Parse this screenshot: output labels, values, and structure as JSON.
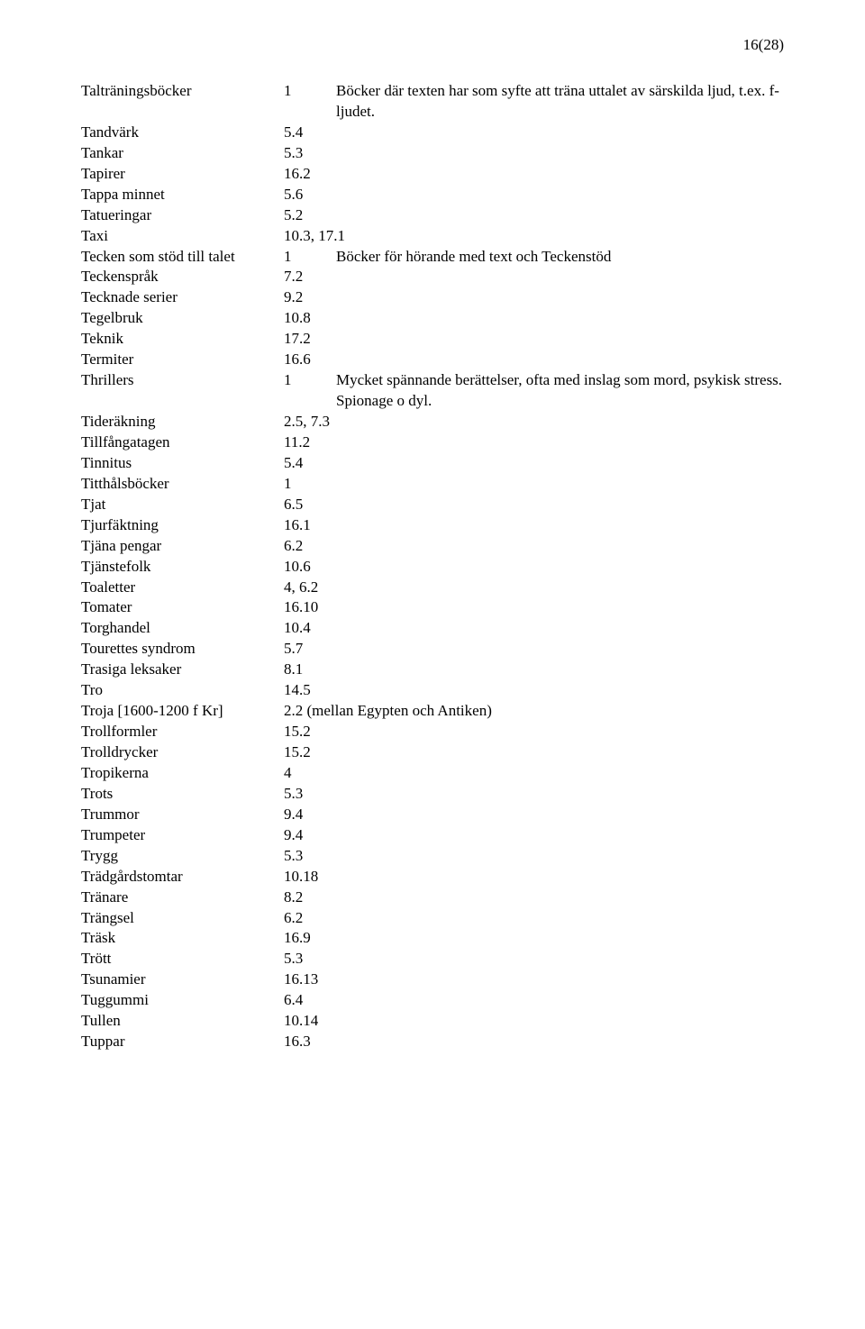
{
  "pageNumber": "16(28)",
  "entries": [
    {
      "term": "Talträningsböcker",
      "code": "1",
      "note": "Böcker där texten har som syfte att träna uttalet av särskilda ljud, t.ex. f-ljudet."
    },
    {
      "term": "Tandvärk",
      "code": "5.4",
      "note": ""
    },
    {
      "term": "Tankar",
      "code": "5.3",
      "note": ""
    },
    {
      "term": "Tapirer",
      "code": "16.2",
      "note": ""
    },
    {
      "term": "Tappa minnet",
      "code": "5.6",
      "note": ""
    },
    {
      "term": "Tatueringar",
      "code": "5.2",
      "note": ""
    },
    {
      "term": "Taxi",
      "code": "10.3, 17.1",
      "note": ""
    },
    {
      "term": "Tecken som stöd till talet",
      "code": "1",
      "note": "Böcker för hörande med text och Teckenstöd"
    },
    {
      "term": "Teckenspråk",
      "code": "7.2",
      "note": ""
    },
    {
      "term": "Tecknade serier",
      "code": "9.2",
      "note": ""
    },
    {
      "term": "Tegelbruk",
      "code": "10.8",
      "note": ""
    },
    {
      "term": "Teknik",
      "code": "17.2",
      "note": ""
    },
    {
      "term": "Termiter",
      "code": "16.6",
      "note": ""
    },
    {
      "term": "Thrillers",
      "code": "1",
      "note": "Mycket spännande berättelser, ofta med inslag som mord, psykisk stress. Spionage o dyl."
    },
    {
      "term": "Tideräkning",
      "code": "2.5, 7.3",
      "note": ""
    },
    {
      "term": "Tillfångatagen",
      "code": "11.2",
      "note": ""
    },
    {
      "term": "Tinnitus",
      "code": "5.4",
      "note": ""
    },
    {
      "term": "Titthålsböcker",
      "code": "1",
      "note": ""
    },
    {
      "term": "Tjat",
      "code": "6.5",
      "note": ""
    },
    {
      "term": "Tjurfäktning",
      "code": "16.1",
      "note": ""
    },
    {
      "term": "Tjäna pengar",
      "code": "6.2",
      "note": ""
    },
    {
      "term": "Tjänstefolk",
      "code": "10.6",
      "note": ""
    },
    {
      "term": "Toaletter",
      "code": "4, 6.2",
      "note": ""
    },
    {
      "term": "Tomater",
      "code": "16.10",
      "note": ""
    },
    {
      "term": "Torghandel",
      "code": "10.4",
      "note": ""
    },
    {
      "term": "Tourettes syndrom",
      "code": "5.7",
      "note": ""
    },
    {
      "term": "Trasiga leksaker",
      "code": "8.1",
      "note": ""
    },
    {
      "term": "Tro",
      "code": "14.5",
      "note": ""
    },
    {
      "term": "Troja [1600-1200 f Kr]",
      "code": "2.2 (mellan Egypten och Antiken)",
      "note": ""
    },
    {
      "term": "Trollformler",
      "code": "15.2",
      "note": ""
    },
    {
      "term": "Trolldrycker",
      "code": "15.2",
      "note": ""
    },
    {
      "term": "Tropikerna",
      "code": "4",
      "note": ""
    },
    {
      "term": "Trots",
      "code": "5.3",
      "note": ""
    },
    {
      "term": "Trummor",
      "code": "9.4",
      "note": ""
    },
    {
      "term": "Trumpeter",
      "code": "9.4",
      "note": ""
    },
    {
      "term": "Trygg",
      "code": "5.3",
      "note": ""
    },
    {
      "term": "Trädgårdstomtar",
      "code": "10.18",
      "note": ""
    },
    {
      "term": "Tränare",
      "code": "8.2",
      "note": ""
    },
    {
      "term": "Trängsel",
      "code": "6.2",
      "note": ""
    },
    {
      "term": "Träsk",
      "code": "16.9",
      "note": ""
    },
    {
      "term": "Trött",
      "code": "5.3",
      "note": ""
    },
    {
      "term": "Tsunamier",
      "code": "16.13",
      "note": ""
    },
    {
      "term": "Tuggummi",
      "code": "6.4",
      "note": ""
    },
    {
      "term": "Tullen",
      "code": "10.14",
      "note": ""
    },
    {
      "term": "Tuppar",
      "code": "16.3",
      "note": ""
    }
  ]
}
